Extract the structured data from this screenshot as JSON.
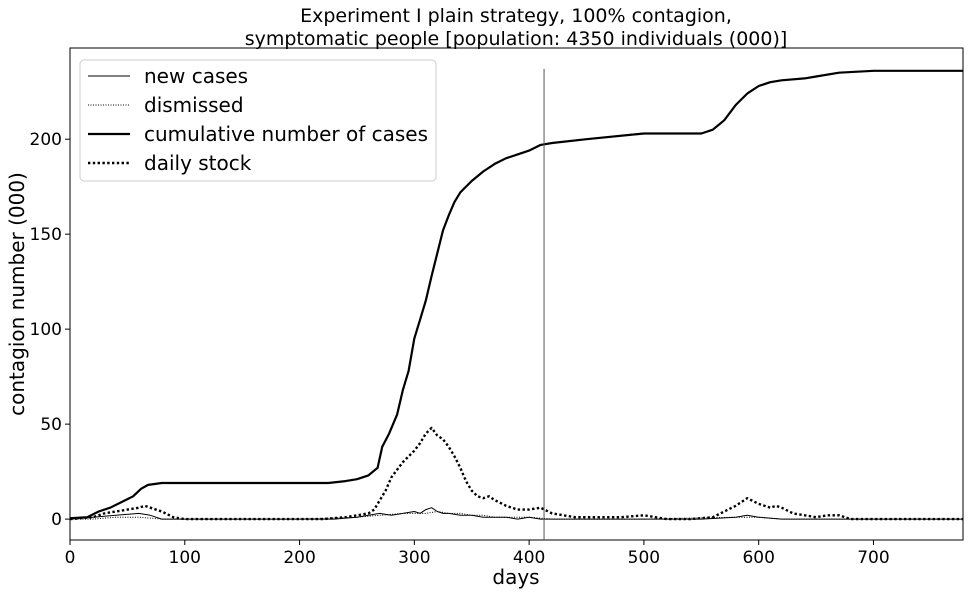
{
  "chart_data": {
    "type": "line",
    "title_line1": "Experiment I plain strategy, 100% contagion,",
    "title_line2": "symptomatic people [population: 4350 individuals (000)]",
    "xlabel": "days",
    "ylabel": "contagion number (000)",
    "xlim": [
      0,
      778
    ],
    "ylim": [
      -11,
      248
    ],
    "xticks": [
      0,
      100,
      200,
      300,
      400,
      500,
      600,
      700
    ],
    "yticks": [
      0,
      50,
      100,
      150,
      200
    ],
    "legend_position": "top-left",
    "vertical_marker_x": 413,
    "series": [
      {
        "name": "new cases",
        "style": "thin-solid",
        "x": [
          0,
          20,
          40,
          60,
          70,
          80,
          100,
          150,
          200,
          230,
          250,
          260,
          270,
          280,
          290,
          300,
          305,
          310,
          315,
          320,
          325,
          330,
          340,
          350,
          360,
          370,
          380,
          390,
          400,
          410,
          420,
          450,
          500,
          550,
          580,
          590,
          600,
          620,
          650,
          700,
          778
        ],
        "y": [
          0,
          1,
          2,
          3,
          2,
          0,
          0,
          0,
          0,
          0,
          1,
          2,
          3,
          2,
          3,
          4,
          3,
          5,
          6,
          4,
          3,
          3,
          2,
          2,
          1,
          1,
          1,
          0,
          1,
          0,
          0,
          0,
          0,
          0,
          1,
          2,
          1,
          0,
          0,
          0,
          0
        ]
      },
      {
        "name": "dismissed",
        "style": "thin-dotted",
        "x": [
          0,
          20,
          40,
          60,
          80,
          100,
          200,
          250,
          270,
          290,
          300,
          310,
          320,
          330,
          340,
          350,
          360,
          370,
          380,
          400,
          420,
          500,
          580,
          600,
          620,
          650,
          700,
          778
        ],
        "y": [
          0,
          0,
          1,
          1,
          0,
          0,
          0,
          1,
          2,
          3,
          3,
          3,
          4,
          3,
          3,
          2,
          2,
          1,
          1,
          1,
          0,
          0,
          1,
          1,
          0,
          0,
          0,
          0
        ]
      },
      {
        "name": "cumulative number of cases",
        "style": "thick-solid",
        "x": [
          0,
          15,
          25,
          35,
          45,
          55,
          62,
          68,
          80,
          100,
          150,
          200,
          225,
          240,
          250,
          260,
          268,
          272,
          278,
          285,
          290,
          295,
          300,
          305,
          310,
          315,
          320,
          325,
          330,
          335,
          340,
          350,
          360,
          370,
          380,
          390,
          400,
          410,
          420,
          450,
          500,
          550,
          560,
          570,
          580,
          590,
          600,
          610,
          620,
          640,
          650,
          670,
          700,
          778
        ],
        "y": [
          0.5,
          1,
          4,
          6,
          9,
          12,
          16,
          18,
          19,
          19,
          19,
          19,
          19,
          20,
          21,
          23,
          27,
          38,
          45,
          55,
          68,
          78,
          95,
          105,
          115,
          128,
          140,
          152,
          160,
          167,
          172,
          178,
          183,
          187,
          190,
          192,
          194,
          197,
          198,
          200,
          203,
          203,
          205,
          210,
          218,
          224,
          228,
          230,
          231,
          232,
          233,
          235,
          236,
          236
        ]
      },
      {
        "name": "daily stock",
        "style": "thick-dotted",
        "x": [
          0,
          20,
          30,
          40,
          50,
          60,
          65,
          70,
          80,
          90,
          100,
          200,
          220,
          240,
          250,
          260,
          265,
          270,
          275,
          280,
          290,
          300,
          305,
          310,
          315,
          320,
          325,
          330,
          335,
          340,
          345,
          350,
          355,
          360,
          365,
          370,
          380,
          390,
          400,
          410,
          420,
          440,
          460,
          480,
          500,
          520,
          540,
          560,
          570,
          580,
          585,
          590,
          600,
          610,
          615,
          620,
          630,
          640,
          650,
          660,
          670,
          680,
          700,
          778
        ],
        "y": [
          0,
          1,
          3,
          4,
          5,
          6,
          7,
          6,
          4,
          1,
          0,
          0,
          0,
          1,
          2,
          3,
          5,
          10,
          15,
          22,
          30,
          36,
          40,
          45,
          48,
          44,
          42,
          38,
          33,
          27,
          20,
          15,
          12,
          11,
          12,
          10,
          7,
          5,
          5,
          6,
          3,
          1,
          1,
          1,
          2,
          0,
          0,
          1,
          4,
          7,
          9,
          11,
          8,
          6,
          7,
          6,
          3,
          2,
          1,
          2,
          2,
          0,
          0,
          0
        ]
      }
    ]
  }
}
